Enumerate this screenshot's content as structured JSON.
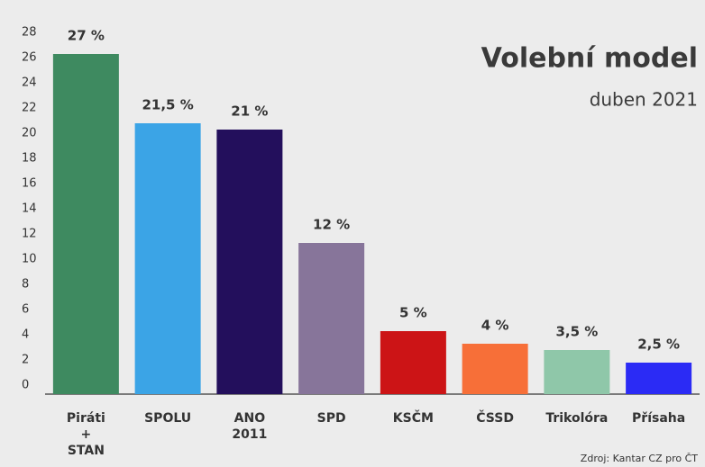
{
  "chart_data": {
    "type": "bar",
    "title": "Volební model",
    "subtitle": "duben 2021",
    "source": "Zdroj: Kantar CZ pro ČT",
    "categories": [
      "Piráti\n+\nSTAN",
      "SPOLU",
      "ANO\n2011",
      "SPD",
      "KSČM",
      "ČSSD",
      "Trikolóra",
      "Přísaha"
    ],
    "values": [
      27,
      21.5,
      21,
      12,
      5,
      4,
      3.5,
      2.5
    ],
    "value_labels": [
      "27 %",
      "21,5 %",
      "21 %",
      "12 %",
      "5 %",
      "4 %",
      "3,5 %",
      "2,5 %"
    ],
    "colors": [
      "#3e8a60",
      "#3ba4e6",
      "#230f5c",
      "#87759a",
      "#cc1416",
      "#f76f38",
      "#8fc7a9",
      "#2b2bf5"
    ],
    "ylim": [
      0,
      28
    ],
    "yticks": [
      0,
      2,
      4,
      6,
      8,
      10,
      12,
      14,
      16,
      18,
      20,
      22,
      24,
      26,
      28
    ],
    "grid": false
  }
}
